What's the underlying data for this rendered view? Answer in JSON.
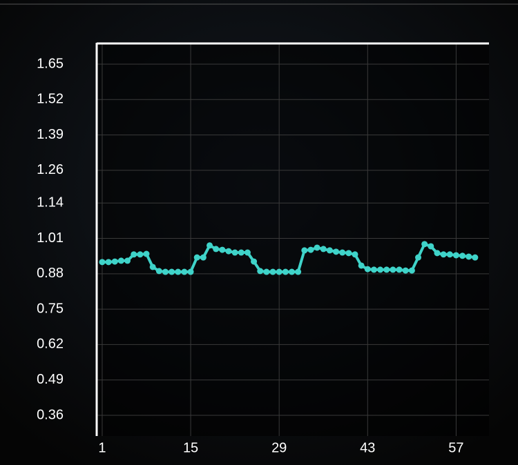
{
  "chart_data": {
    "type": "line",
    "x": [
      1,
      2,
      3,
      4,
      5,
      6,
      7,
      8,
      9,
      10,
      11,
      12,
      13,
      14,
      15,
      16,
      17,
      18,
      19,
      20,
      21,
      22,
      23,
      24,
      25,
      26,
      27,
      28,
      29,
      30,
      31,
      32,
      33,
      34,
      35,
      36,
      37,
      38,
      39,
      40,
      41,
      42,
      43,
      44,
      45,
      46,
      47,
      48,
      49,
      50,
      51,
      52,
      53,
      54,
      55,
      56,
      57,
      58,
      59,
      60
    ],
    "series": [
      {
        "color": "#3fd3c9",
        "values": [
          0.923,
          0.923,
          0.925,
          0.928,
          0.928,
          0.951,
          0.951,
          0.953,
          0.905,
          0.89,
          0.887,
          0.887,
          0.887,
          0.887,
          0.887,
          0.94,
          0.94,
          0.984,
          0.971,
          0.968,
          0.963,
          0.958,
          0.958,
          0.958,
          0.925,
          0.89,
          0.887,
          0.887,
          0.887,
          0.887,
          0.887,
          0.887,
          0.966,
          0.968,
          0.976,
          0.971,
          0.966,
          0.961,
          0.958,
          0.956,
          0.951,
          0.91,
          0.897,
          0.895,
          0.895,
          0.895,
          0.895,
          0.895,
          0.892,
          0.892,
          0.94,
          0.989,
          0.981,
          0.956,
          0.951,
          0.951,
          0.948,
          0.946,
          0.943,
          0.94
        ]
      }
    ],
    "xlim": [
      0.13,
      62.2
    ],
    "xticks": [
      1,
      15,
      29,
      43,
      57
    ],
    "ylim": [
      0.284,
      1.726
    ],
    "yticks": [
      0.36,
      0.49,
      0.62,
      0.75,
      0.88,
      1.01,
      1.14,
      1.26,
      1.39,
      1.52,
      1.65
    ],
    "grid": true
  }
}
